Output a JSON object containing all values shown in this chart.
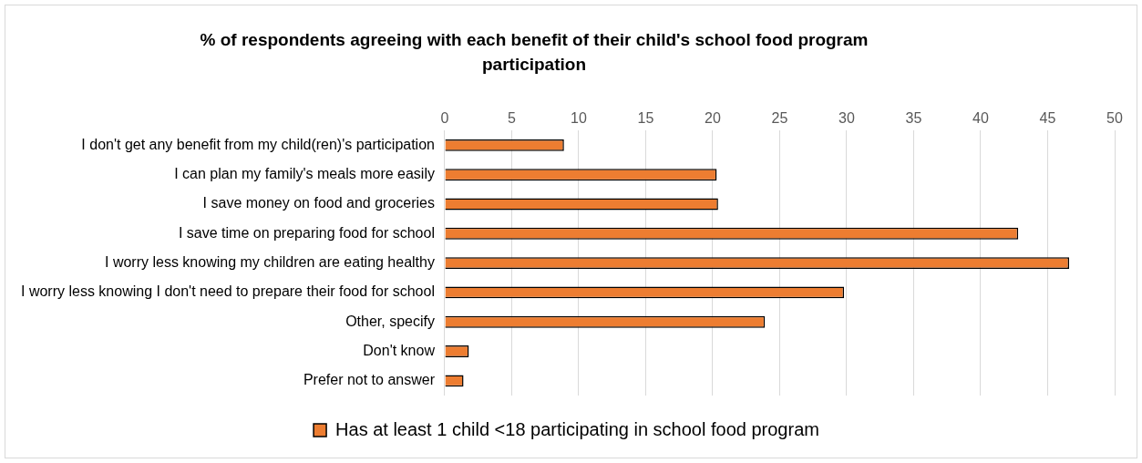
{
  "chart_data": {
    "type": "bar",
    "orientation": "horizontal",
    "title": "% of respondents agreeing with each benefit of their child's school food program participation",
    "categories": [
      "I don't get any benefit from my child(ren)'s participation",
      "I can plan my family's meals more easily",
      "I save money on food and groceries",
      "I save time on preparing food for school",
      "I worry less knowing my children are eating healthy",
      "I worry less knowing I don't need to prepare their food for school",
      "Other, specify",
      "Don't know",
      "Prefer not to answer"
    ],
    "series": [
      {
        "name": "Has at least 1 child <18 participating in school food program",
        "color": "#ed7d31",
        "values": [
          8.9,
          20.3,
          20.4,
          42.8,
          46.6,
          29.8,
          23.9,
          1.8,
          1.4
        ]
      }
    ],
    "xlim": [
      0,
      50
    ],
    "xticks": [
      0,
      5,
      10,
      15,
      20,
      25,
      30,
      35,
      40,
      45,
      50
    ],
    "grid": "x",
    "legend": "bottom"
  }
}
